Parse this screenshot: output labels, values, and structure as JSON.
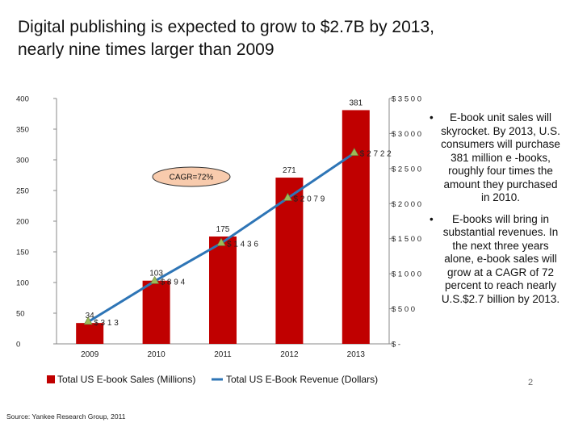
{
  "slide": {
    "title_line1": "Digital publishing is expected to grow to $2.7B by 2013,",
    "title_line2": "nearly nine times larger than 2009",
    "bullets": [
      "E-book unit sales will skyrocket. By 2013, U.S. consumers will purchase 381 million e -books, roughly four times the amount they purchased in 2010.",
      "E-books will bring in substantial revenues. In the next three years alone, e-book sales will grow at a CAGR of 72 percent to reach nearly U.S.$2.7 billion by 2013."
    ],
    "source": "Source: Yankee Research Group, 2011",
    "page_number": "2"
  },
  "chart_data": {
    "type": "bar",
    "categories": [
      "2009",
      "2010",
      "2011",
      "2012",
      "2013"
    ],
    "series": [
      {
        "name": "Total US E-book Sales (Millions)",
        "kind": "bar",
        "axis": "left",
        "values": [
          34,
          103,
          175,
          271,
          381
        ],
        "labels": [
          "34",
          "103",
          "175",
          "271",
          "381"
        ],
        "color": "#c00000"
      },
      {
        "name": "Total US E-Book Revenue (Dollars)",
        "kind": "line",
        "axis": "right",
        "values": [
          313,
          894,
          1436,
          2079,
          2722
        ],
        "labels": [
          "$313",
          "$894",
          "$1436",
          "$2079",
          "$2722"
        ],
        "color": "#2e75b6",
        "marker_color": "#9bbb59"
      }
    ],
    "y_left": {
      "min": 0,
      "max": 400,
      "ticks": [
        "0",
        "50",
        "100",
        "150",
        "200",
        "250",
        "300",
        "350",
        "400"
      ]
    },
    "y_right": {
      "min": 0,
      "max": 3500,
      "ticks": [
        "$-",
        "$500",
        "$1000",
        "$1500",
        "$2000",
        "$2500",
        "$3000",
        "$3500"
      ]
    },
    "annotation": "CAGR=72%",
    "annotation_fill": "#f8cbad",
    "grid": false,
    "legend_position": "bottom"
  }
}
